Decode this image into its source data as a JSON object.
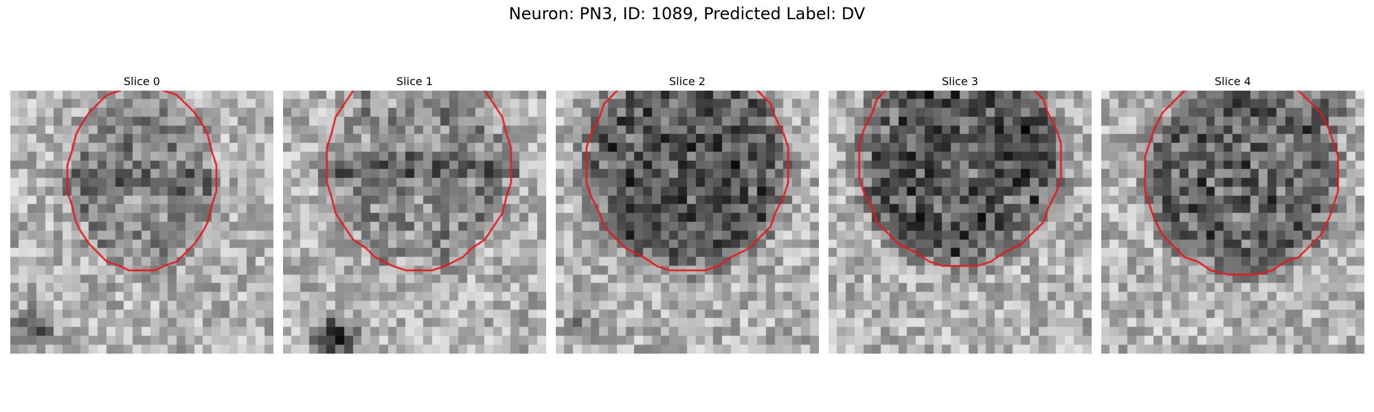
{
  "figure": {
    "title": "Neuron: PN3, ID: 1089, Predicted Label: DV",
    "contour_color": "#e41a1c",
    "image_colormap": "gray"
  },
  "slices": [
    {
      "title": "Slice 0",
      "intensity": "light",
      "texture": "stripe"
    },
    {
      "title": "Slice 1",
      "intensity": "light",
      "texture": "stripe"
    },
    {
      "title": "Slice 2",
      "intensity": "dark",
      "texture": "speckle"
    },
    {
      "title": "Slice 3",
      "intensity": "dark",
      "texture": "speckle"
    },
    {
      "title": "Slice 4",
      "intensity": "dark",
      "texture": "smooth"
    }
  ]
}
